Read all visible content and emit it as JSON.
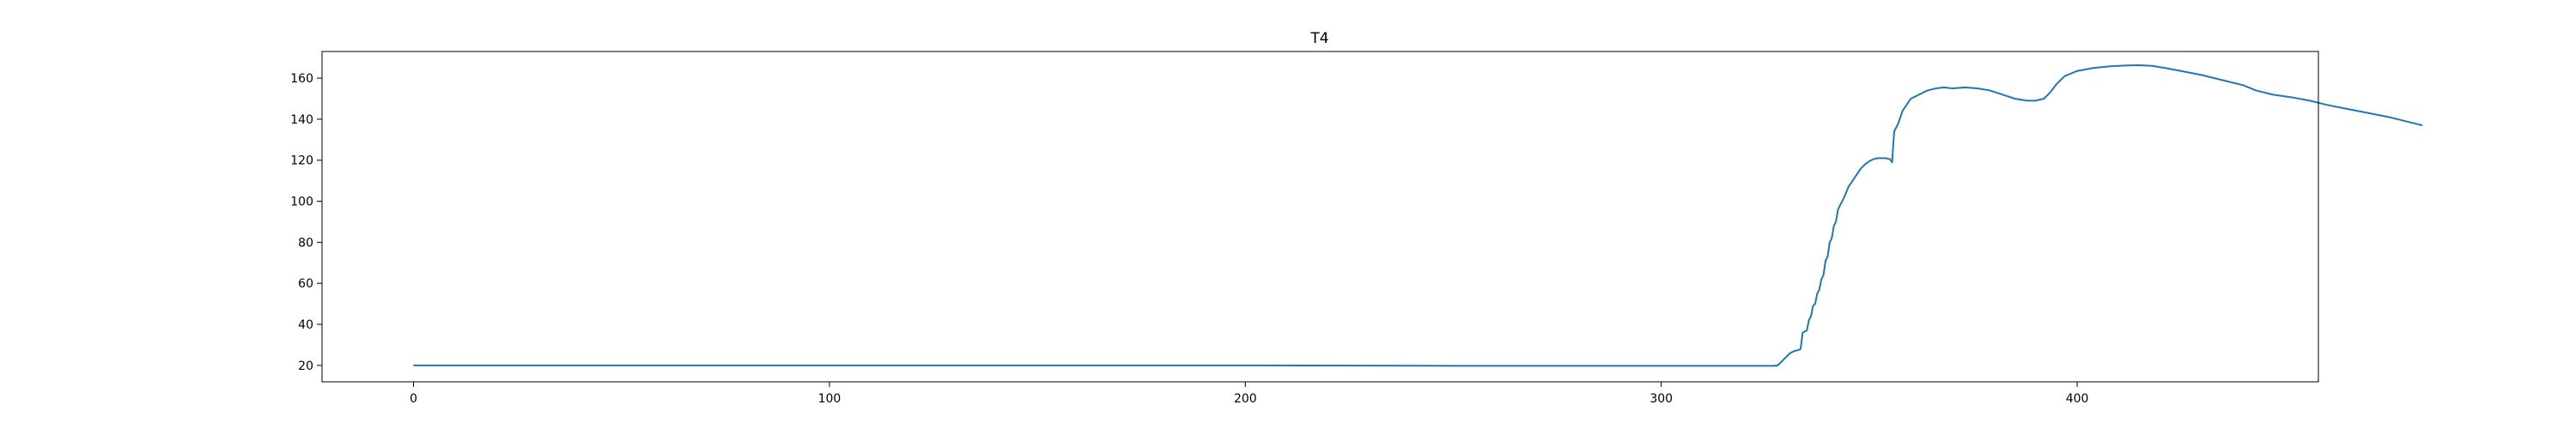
{
  "chart_data": {
    "type": "line",
    "title": "T4",
    "xlabel": "",
    "ylabel": "",
    "xlim": [
      -22,
      458
    ],
    "ylim": [
      12,
      173
    ],
    "xticks": [
      0,
      100,
      200,
      300,
      400
    ],
    "yticks": [
      20,
      40,
      60,
      80,
      100,
      120,
      140,
      160
    ],
    "grid": false,
    "legend": "none",
    "series": [
      {
        "color": "#1f77b4",
        "points": [
          [
            0,
            20
          ],
          [
            50,
            20
          ],
          [
            100,
            20
          ],
          [
            150,
            20
          ],
          [
            200,
            20
          ],
          [
            250,
            19.8
          ],
          [
            300,
            19.8
          ],
          [
            327,
            19.8
          ],
          [
            328,
            20
          ],
          [
            329,
            22
          ],
          [
            330,
            24
          ],
          [
            331,
            26
          ],
          [
            332,
            27
          ],
          [
            333,
            27.5
          ],
          [
            333.5,
            28
          ],
          [
            334,
            36
          ],
          [
            335,
            37
          ],
          [
            335.5,
            42
          ],
          [
            336,
            44
          ],
          [
            336.5,
            49
          ],
          [
            337,
            50
          ],
          [
            337.5,
            55
          ],
          [
            338,
            57
          ],
          [
            338.5,
            62
          ],
          [
            339,
            64
          ],
          [
            339.5,
            71
          ],
          [
            340,
            73
          ],
          [
            340.5,
            80
          ],
          [
            341,
            82
          ],
          [
            341.5,
            88
          ],
          [
            342,
            90
          ],
          [
            342.5,
            96
          ],
          [
            343,
            98
          ],
          [
            344,
            102
          ],
          [
            345,
            107
          ],
          [
            346,
            110
          ],
          [
            347,
            113
          ],
          [
            348,
            116
          ],
          [
            349,
            118
          ],
          [
            350,
            119.5
          ],
          [
            351,
            120.5
          ],
          [
            352,
            121
          ],
          [
            353,
            121
          ],
          [
            354,
            121
          ],
          [
            355,
            120.5
          ],
          [
            355.5,
            119
          ],
          [
            356,
            134
          ],
          [
            357,
            138
          ],
          [
            358,
            144
          ],
          [
            359,
            147
          ],
          [
            360,
            150
          ],
          [
            362,
            152
          ],
          [
            364,
            154
          ],
          [
            366,
            155
          ],
          [
            368,
            155.5
          ],
          [
            370,
            155
          ],
          [
            373,
            155.5
          ],
          [
            376,
            155
          ],
          [
            379,
            154
          ],
          [
            382,
            152
          ],
          [
            385,
            150
          ],
          [
            388,
            149
          ],
          [
            390,
            149
          ],
          [
            392,
            150
          ],
          [
            393.5,
            153
          ],
          [
            395,
            157
          ],
          [
            397,
            161
          ],
          [
            400,
            163.5
          ],
          [
            404,
            165
          ],
          [
            408,
            165.8
          ],
          [
            412,
            166.2
          ],
          [
            415,
            166.3
          ],
          [
            418,
            166
          ],
          [
            421,
            165
          ],
          [
            425,
            163.5
          ],
          [
            430,
            161.5
          ],
          [
            435,
            159
          ],
          [
            440,
            156.5
          ],
          [
            443,
            154
          ],
          [
            447,
            152
          ],
          [
            452,
            150.5
          ],
          [
            456,
            149
          ],
          [
            460,
            147
          ],
          [
            465,
            145
          ],
          [
            470,
            143
          ],
          [
            475,
            141
          ],
          [
            479,
            139
          ],
          [
            483,
            137
          ]
        ]
      }
    ]
  }
}
